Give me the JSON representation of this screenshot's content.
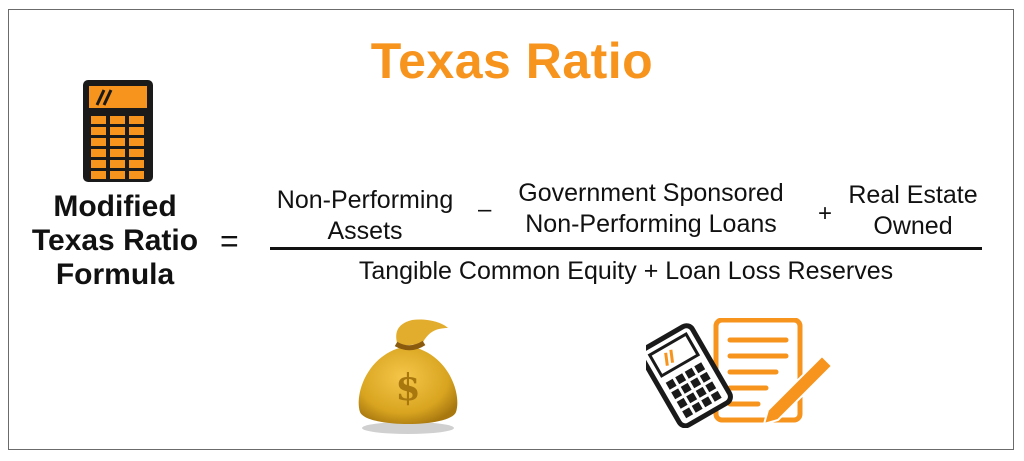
{
  "title": "Texas Ratio",
  "formula": {
    "lhs_line1": "Modified",
    "lhs_line2": "Texas Ratio",
    "lhs_line3": "Formula",
    "equals": "=",
    "term1_line1": "Non-Performing",
    "term1_line2": "Assets",
    "minus": "–",
    "term2_line1": "Government Sponsored",
    "term2_line2": "Non-Performing Loans",
    "plus": "+",
    "term3_line1": "Real Estate",
    "term3_line2": "Owned",
    "denominator": "Tangible Common Equity + Loan Loss Reserves"
  },
  "icons": [
    "calculator-icon",
    "money-bag-icon",
    "calculator-document-icon"
  ],
  "colors": {
    "accent": "#f7941d",
    "dark": "#1a1a1a",
    "gold": "#d9a520"
  }
}
